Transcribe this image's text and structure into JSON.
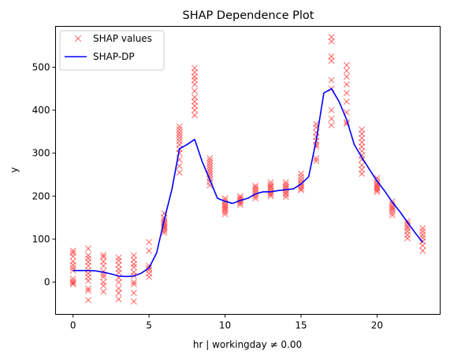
{
  "chart_data": {
    "type": "scatter",
    "title": "SHAP Dependence Plot",
    "xlabel": "hr | workingday ≠ 0.00",
    "ylabel": "y",
    "xlim": [
      -1.15,
      24.15
    ],
    "ylim": [
      -75,
      595
    ],
    "xticks": [
      0,
      5,
      10,
      15,
      20
    ],
    "yticks": [
      0,
      100,
      200,
      300,
      400,
      500
    ],
    "legend": {
      "placement": "top-left",
      "entries": [
        "SHAP values",
        "SHAP-DP"
      ]
    },
    "colors": {
      "shap_values": "#ff0000",
      "shap_dp": "#0000ff"
    },
    "series": [
      {
        "name": "SHAP values",
        "marker": "x",
        "points": [
          [
            0,
            73
          ],
          [
            0,
            68
          ],
          [
            0,
            60
          ],
          [
            0,
            48
          ],
          [
            0,
            40
          ],
          [
            0,
            33
          ],
          [
            0,
            27
          ],
          [
            0,
            8
          ],
          [
            0,
            2
          ],
          [
            0,
            -2
          ],
          [
            0,
            -5
          ],
          [
            1,
            78
          ],
          [
            1,
            62
          ],
          [
            1,
            55
          ],
          [
            1,
            47
          ],
          [
            1,
            38
          ],
          [
            1,
            28
          ],
          [
            1,
            20
          ],
          [
            1,
            12
          ],
          [
            1,
            3
          ],
          [
            1,
            -15
          ],
          [
            1,
            -20
          ],
          [
            1,
            -42
          ],
          [
            2,
            63
          ],
          [
            2,
            58
          ],
          [
            2,
            48
          ],
          [
            2,
            38
          ],
          [
            2,
            25
          ],
          [
            2,
            18
          ],
          [
            2,
            12
          ],
          [
            2,
            0
          ],
          [
            2,
            -8
          ],
          [
            2,
            -22
          ],
          [
            3,
            57
          ],
          [
            3,
            50
          ],
          [
            3,
            40
          ],
          [
            3,
            30
          ],
          [
            3,
            22
          ],
          [
            3,
            10
          ],
          [
            3,
            0
          ],
          [
            3,
            -15
          ],
          [
            3,
            -25
          ],
          [
            3,
            -40
          ],
          [
            4,
            62
          ],
          [
            4,
            52
          ],
          [
            4,
            42
          ],
          [
            4,
            35
          ],
          [
            4,
            23
          ],
          [
            4,
            15
          ],
          [
            4,
            0
          ],
          [
            4,
            -5
          ],
          [
            4,
            -25
          ],
          [
            4,
            -45
          ],
          [
            5,
            93
          ],
          [
            5,
            73
          ],
          [
            5,
            38
          ],
          [
            5,
            33
          ],
          [
            5,
            28
          ],
          [
            5,
            20
          ],
          [
            5,
            12
          ],
          [
            6,
            160
          ],
          [
            6,
            150
          ],
          [
            6,
            145
          ],
          [
            6,
            140
          ],
          [
            6,
            136
          ],
          [
            6,
            132
          ],
          [
            6,
            128
          ],
          [
            6,
            125
          ],
          [
            6,
            120
          ],
          [
            6,
            115
          ],
          [
            7,
            362
          ],
          [
            7,
            355
          ],
          [
            7,
            348
          ],
          [
            7,
            342
          ],
          [
            7,
            335
          ],
          [
            7,
            328
          ],
          [
            7,
            320
          ],
          [
            7,
            310
          ],
          [
            7,
            300
          ],
          [
            7,
            285
          ],
          [
            7,
            270
          ],
          [
            7,
            255
          ],
          [
            8,
            498
          ],
          [
            8,
            488
          ],
          [
            8,
            478
          ],
          [
            8,
            470
          ],
          [
            8,
            460
          ],
          [
            8,
            445
          ],
          [
            8,
            430
          ],
          [
            8,
            420
          ],
          [
            8,
            410
          ],
          [
            8,
            400
          ],
          [
            8,
            388
          ],
          [
            9,
            288
          ],
          [
            9,
            282
          ],
          [
            9,
            276
          ],
          [
            9,
            270
          ],
          [
            9,
            264
          ],
          [
            9,
            258
          ],
          [
            9,
            252
          ],
          [
            9,
            246
          ],
          [
            9,
            240
          ],
          [
            9,
            233
          ],
          [
            9,
            225
          ],
          [
            10,
            195
          ],
          [
            10,
            190
          ],
          [
            10,
            185
          ],
          [
            10,
            180
          ],
          [
            10,
            176
          ],
          [
            10,
            172
          ],
          [
            10,
            168
          ],
          [
            10,
            163
          ],
          [
            10,
            158
          ],
          [
            11,
            200
          ],
          [
            11,
            196
          ],
          [
            11,
            192
          ],
          [
            11,
            188
          ],
          [
            11,
            184
          ],
          [
            11,
            180
          ],
          [
            12,
            224
          ],
          [
            12,
            220
          ],
          [
            12,
            215
          ],
          [
            12,
            210
          ],
          [
            12,
            205
          ],
          [
            12,
            200
          ],
          [
            12,
            195
          ],
          [
            13,
            232
          ],
          [
            13,
            226
          ],
          [
            13,
            222
          ],
          [
            13,
            218
          ],
          [
            13,
            213
          ],
          [
            13,
            208
          ],
          [
            13,
            204
          ],
          [
            13,
            200
          ],
          [
            14,
            232
          ],
          [
            14,
            227
          ],
          [
            14,
            222
          ],
          [
            14,
            218
          ],
          [
            14,
            213
          ],
          [
            14,
            208
          ],
          [
            14,
            204
          ],
          [
            14,
            198
          ],
          [
            15,
            252
          ],
          [
            15,
            245
          ],
          [
            15,
            238
          ],
          [
            15,
            232
          ],
          [
            15,
            228
          ],
          [
            15,
            223
          ],
          [
            15,
            218
          ],
          [
            15,
            214
          ],
          [
            16,
            368
          ],
          [
            16,
            360
          ],
          [
            16,
            348
          ],
          [
            16,
            338
          ],
          [
            16,
            328
          ],
          [
            16,
            320
          ],
          [
            16,
            315
          ],
          [
            16,
            288
          ],
          [
            16,
            282
          ],
          [
            17,
            570
          ],
          [
            17,
            560
          ],
          [
            17,
            525
          ],
          [
            17,
            515
          ],
          [
            17,
            470
          ],
          [
            17,
            450
          ],
          [
            17,
            400
          ],
          [
            17,
            380
          ],
          [
            17,
            365
          ],
          [
            18,
            505
          ],
          [
            18,
            492
          ],
          [
            18,
            478
          ],
          [
            18,
            460
          ],
          [
            18,
            440
          ],
          [
            18,
            420
          ],
          [
            18,
            395
          ],
          [
            18,
            372
          ],
          [
            18,
            368
          ],
          [
            19,
            355
          ],
          [
            19,
            345
          ],
          [
            19,
            335
          ],
          [
            19,
            325
          ],
          [
            19,
            315
          ],
          [
            19,
            305
          ],
          [
            19,
            295
          ],
          [
            19,
            285
          ],
          [
            19,
            272
          ],
          [
            19,
            262
          ],
          [
            19,
            252
          ],
          [
            20,
            242
          ],
          [
            20,
            236
          ],
          [
            20,
            230
          ],
          [
            20,
            226
          ],
          [
            20,
            222
          ],
          [
            20,
            218
          ],
          [
            20,
            214
          ],
          [
            20,
            210
          ],
          [
            21,
            188
          ],
          [
            21,
            182
          ],
          [
            21,
            176
          ],
          [
            21,
            172
          ],
          [
            21,
            168
          ],
          [
            21,
            162
          ],
          [
            21,
            156
          ],
          [
            22,
            142
          ],
          [
            22,
            136
          ],
          [
            22,
            130
          ],
          [
            22,
            125
          ],
          [
            22,
            118
          ],
          [
            22,
            110
          ],
          [
            22,
            102
          ],
          [
            23,
            125
          ],
          [
            23,
            118
          ],
          [
            23,
            110
          ],
          [
            23,
            103
          ],
          [
            23,
            95
          ],
          [
            23,
            85
          ],
          [
            23,
            73
          ]
        ]
      },
      {
        "name": "SHAP-DP",
        "type": "line",
        "x": [
          0,
          0.5,
          1,
          1.5,
          2,
          2.5,
          3,
          3.5,
          4,
          4.5,
          5,
          5.5,
          6,
          6.5,
          7,
          7.5,
          8,
          8.5,
          9,
          9.5,
          10,
          10.5,
          11,
          11.5,
          12,
          12.5,
          13,
          13.5,
          14,
          14.5,
          15,
          15.5,
          16,
          16.5,
          17,
          17.5,
          18,
          18.5,
          19,
          19.5,
          20,
          20.5,
          21,
          21.5,
          22,
          22.5,
          23
        ],
        "y": [
          27,
          27,
          27,
          26,
          23,
          19,
          14,
          13,
          14,
          21,
          33,
          68,
          145,
          215,
          310,
          320,
          332,
          280,
          238,
          195,
          188,
          183,
          190,
          195,
          205,
          210,
          210,
          213,
          215,
          217,
          228,
          245,
          330,
          440,
          450,
          420,
          378,
          320,
          290,
          262,
          235,
          212,
          186,
          164,
          139,
          115,
          92
        ]
      }
    ]
  }
}
